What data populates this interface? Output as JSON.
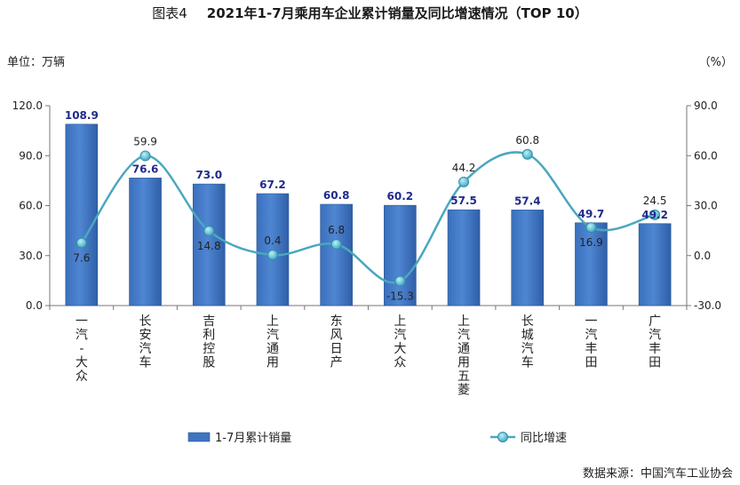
{
  "header": {
    "figure_no": "图表4",
    "title": "2021年1-7月乘用车企业累计销量及同比增速情况（TOP 10）"
  },
  "units": {
    "left": "单位：万辆",
    "right": "（%）"
  },
  "source": "数据来源：中国汽车工业协会",
  "colors": {
    "bar": "#3f74c0",
    "line": "#4aa7bf",
    "marker": "#5ec3d4",
    "bar_label": "#1f2a8c"
  },
  "chart_data": {
    "type": "bar",
    "title": "2021年1-7月乘用车企业累计销量及同比增速情况（TOP 10）",
    "categories": [
      "一汽-大众",
      "长安汽车",
      "吉利控股",
      "上汽通用",
      "东风日产",
      "上汽大众",
      "上汽通用五菱",
      "长城汽车",
      "一汽丰田",
      "广汽丰田"
    ],
    "series": [
      {
        "name": "1-7月累计销量",
        "type": "bar",
        "axis": "left",
        "values": [
          108.9,
          76.6,
          73.0,
          67.2,
          60.8,
          60.2,
          57.5,
          57.4,
          49.7,
          49.2
        ],
        "labels": [
          "108.9",
          "76.6",
          "73.0",
          "67.2",
          "60.8",
          "60.2",
          "57.5",
          "57.4",
          "49.7",
          "49.2"
        ]
      },
      {
        "name": "同比增速",
        "type": "line",
        "axis": "right",
        "values": [
          7.6,
          59.9,
          14.8,
          0.4,
          6.8,
          -15.3,
          44.2,
          60.8,
          16.9,
          24.5
        ],
        "labels": [
          "7.6",
          "59.9",
          "14.8",
          "0.4",
          "6.8",
          "-15.3",
          "44.2",
          "60.8",
          "16.9",
          "24.5"
        ]
      }
    ],
    "ylim_left": [
      0,
      120
    ],
    "yticks_left": [
      "0.0",
      "30.0",
      "60.0",
      "90.0",
      "120.0"
    ],
    "ylim_right": [
      -30,
      90
    ],
    "yticks_right": [
      "-30.0",
      "0.0",
      "30.0",
      "60.0",
      "90.0"
    ],
    "grid": false,
    "legend_position": "bottom"
  }
}
